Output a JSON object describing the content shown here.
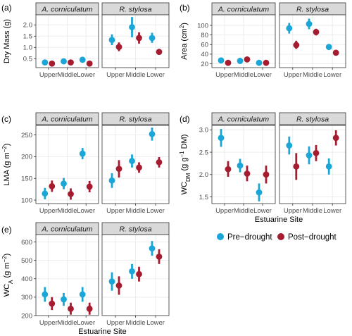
{
  "colors": {
    "pre": "#1aa6d6",
    "post": "#a51c30",
    "strip": "#d9d9d9",
    "grid": "#ebebeb"
  },
  "chart_data": {
    "type": "scatter",
    "categories": [
      "Upper",
      "Middle",
      "Lower"
    ],
    "legend": {
      "placement": "right",
      "entries": [
        "Pre−drought",
        "Post−drought"
      ]
    },
    "panels": [
      {
        "letter": "(a)",
        "species": [
          "A. corniculatum",
          "R. stylosa"
        ],
        "ylabel": {
          "main": "Dry Mass (g)"
        },
        "ylim": [
          0.1,
          2.45
        ],
        "yticks": [
          "0.5",
          "1.0",
          "1.5",
          "2.0"
        ],
        "xlabel": "",
        "data": [
          {
            "pre": [
              [
                0.33,
                0.28,
                0.38
              ],
              [
                0.38,
                0.33,
                0.43
              ],
              [
                0.45,
                0.4,
                0.5
              ]
            ],
            "post": [
              [
                0.28,
                0.25,
                0.31
              ],
              [
                0.33,
                0.3,
                0.36
              ],
              [
                0.28,
                0.25,
                0.31
              ]
            ]
          },
          {
            "pre": [
              [
                1.33,
                1.1,
                1.58
              ],
              [
                1.9,
                1.45,
                2.35
              ],
              [
                1.42,
                1.2,
                1.65
              ]
            ],
            "post": [
              [
                1.02,
                0.83,
                1.22
              ],
              [
                1.42,
                1.17,
                1.67
              ],
              [
                0.8,
                0.68,
                0.93
              ]
            ]
          }
        ]
      },
      {
        "letter": "(b)",
        "species": [
          "A. corniculatum",
          "R. stylosa"
        ],
        "ylabel": {
          "main": "Area (cm",
          "sup": "2",
          "tail": ")"
        },
        "ylim": [
          12,
          122
        ],
        "yticks": [
          "20",
          "40",
          "60",
          "80",
          "100"
        ],
        "xlabel": "",
        "data": [
          {
            "pre": [
              [
                27,
                24,
                30
              ],
              [
                26,
                23,
                29
              ],
              [
                22,
                20,
                24
              ]
            ],
            "post": [
              [
                22,
                20,
                24
              ],
              [
                29,
                27,
                31
              ],
              [
                22,
                20,
                24
              ]
            ]
          },
          {
            "pre": [
              [
                94,
                83,
                105
              ],
              [
                103,
                92,
                114
              ],
              [
                55,
                49,
                61
              ]
            ],
            "post": [
              [
                59,
                51,
                68
              ],
              [
                86,
                79,
                93
              ],
              [
                43,
                40,
                46
              ]
            ]
          }
        ]
      },
      {
        "letter": "(c)",
        "species": [
          "A. corniculatum",
          "R. stylosa"
        ],
        "ylabel": {
          "main": "LMA (g m",
          "sup": "−2",
          "tail": ")"
        },
        "ylim": [
          92,
          272
        ],
        "yticks": [
          "100",
          "150",
          "200",
          "250"
        ],
        "xlabel": "",
        "data": [
          {
            "pre": [
              [
                115,
                102,
                128
              ],
              [
                138,
                125,
                151
              ],
              [
                207,
                194,
                220
              ]
            ],
            "post": [
              [
                132,
                119,
                145
              ],
              [
                114,
                101,
                127
              ],
              [
                131,
                118,
                144
              ]
            ]
          },
          {
            "pre": [
              [
                145,
                128,
                162
              ],
              [
                190,
                175,
                205
              ],
              [
                252,
                237,
                267
              ]
            ],
            "post": [
              [
                172,
                152,
                192
              ],
              [
                175,
                163,
                187
              ],
              [
                187,
                175,
                199
              ]
            ]
          }
        ]
      },
      {
        "letter": "(d)",
        "species": [
          "A. corniculatum",
          "R. stylosa"
        ],
        "ylabel": {
          "main": "WC",
          "sub": "DM",
          "tail": " (g g",
          "sup": "−1",
          "tail2": " DM)"
        },
        "ylim": [
          1.35,
          3.1
        ],
        "yticks": [
          "1.5",
          "2.0",
          "2.5",
          "3.0"
        ],
        "xlabel": "Estuarine Site",
        "data": [
          {
            "pre": [
              [
                2.82,
                2.62,
                3.02
              ],
              [
                2.2,
                2.05,
                2.35
              ],
              [
                1.6,
                1.4,
                1.8
              ]
            ],
            "post": [
              [
                2.12,
                1.95,
                2.3
              ],
              [
                2.02,
                1.85,
                2.2
              ],
              [
                2.0,
                1.8,
                2.2
              ]
            ]
          },
          {
            "pre": [
              [
                2.65,
                2.45,
                2.85
              ],
              [
                2.43,
                2.23,
                2.63
              ],
              [
                2.18,
                2.0,
                2.36
              ]
            ],
            "post": [
              [
                2.18,
                1.88,
                2.48
              ],
              [
                2.48,
                2.3,
                2.66
              ],
              [
                2.82,
                2.65,
                2.99
              ]
            ]
          }
        ]
      },
      {
        "letter": "(e)",
        "species": [
          "A. corniculatum",
          "R. stylosa"
        ],
        "ylabel": {
          "main": "WC",
          "sub": "A",
          "tail": " (g m",
          "sup": "−2",
          "tail2": ")"
        },
        "ylim": [
          200,
          640
        ],
        "yticks": [
          "200",
          "300",
          "400",
          "500",
          "600"
        ],
        "xlabel": "Estuarine Site",
        "data": [
          {
            "pre": [
              [
                315,
                275,
                355
              ],
              [
                288,
                253,
                323
              ],
              [
                315,
                275,
                355
              ]
            ],
            "post": [
              [
                265,
                230,
                300
              ],
              [
                237,
                205,
                270
              ],
              [
                237,
                205,
                270
              ]
            ]
          },
          {
            "pre": [
              [
                385,
                335,
                435
              ],
              [
                440,
                400,
                480
              ],
              [
                565,
                525,
                605
              ]
            ],
            "post": [
              [
                363,
                313,
                413
              ],
              [
                425,
                385,
                465
              ],
              [
                520,
                480,
                560
              ]
            ]
          }
        ]
      }
    ]
  }
}
